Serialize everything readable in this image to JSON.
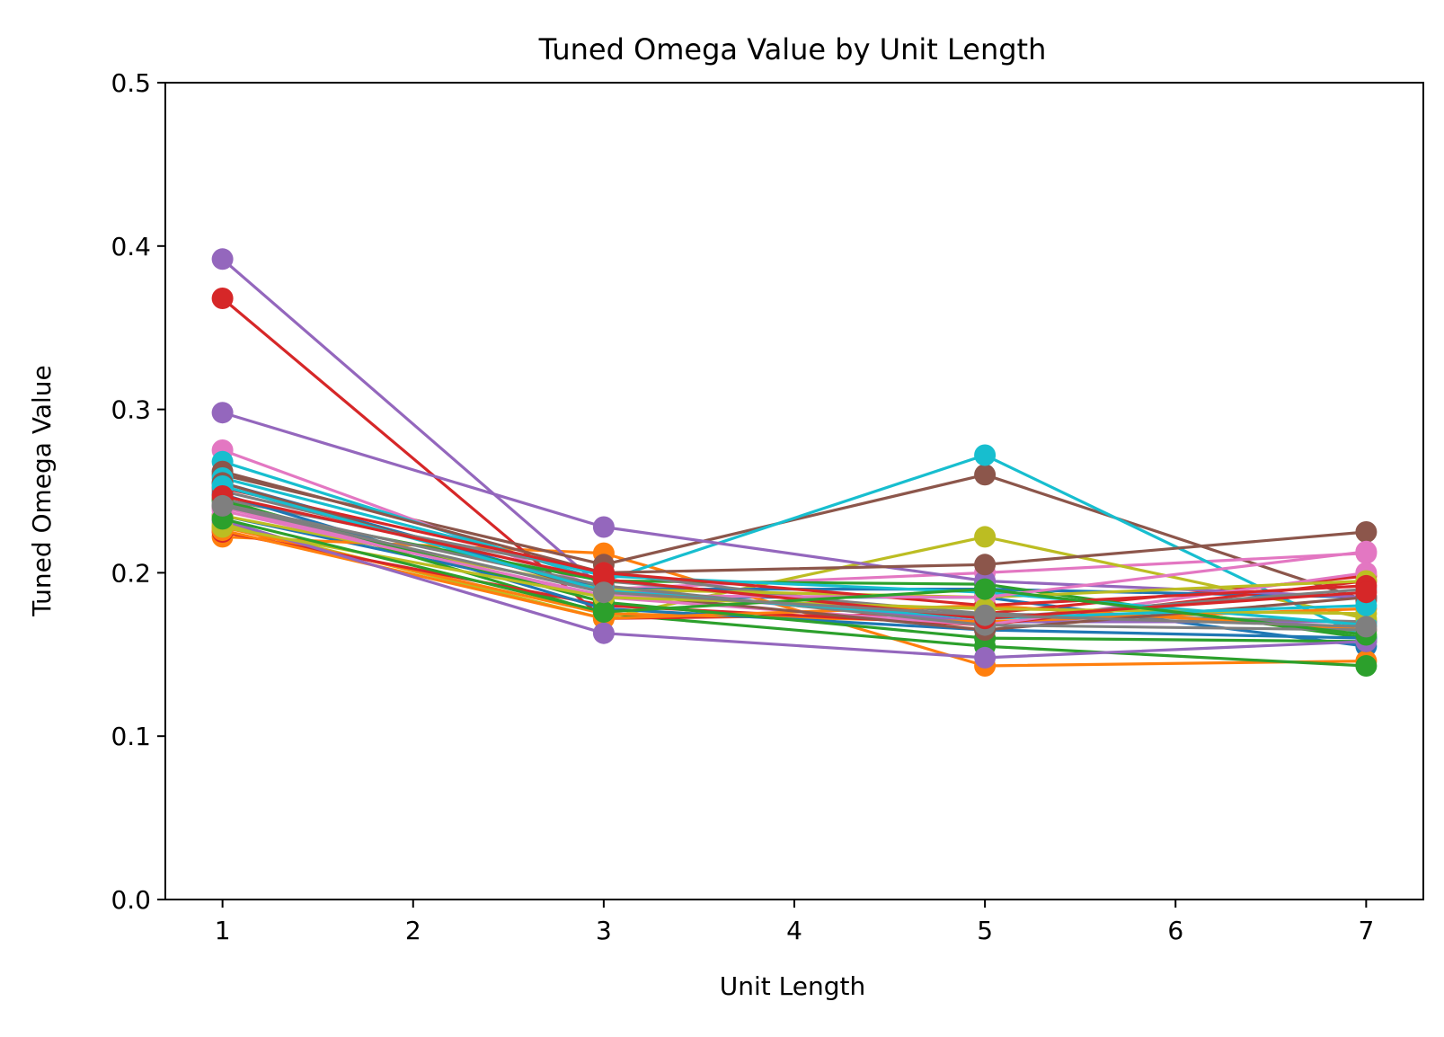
{
  "chart_data": {
    "type": "line",
    "title": "Tuned Omega Value by Unit Length",
    "xlabel": "Unit Length",
    "ylabel": "Tuned Omega Value",
    "xlim": [
      0.7,
      7.3
    ],
    "ylim": [
      0.0,
      0.5
    ],
    "x_ticks": [
      "1",
      "2",
      "3",
      "4",
      "5",
      "6",
      "7"
    ],
    "y_ticks": [
      "0.0",
      "0.1",
      "0.2",
      "0.3",
      "0.4",
      "0.5"
    ],
    "grid": false,
    "legend": "none",
    "x": [
      1,
      3,
      5,
      7
    ],
    "series": [
      {
        "color": "#1f77b4",
        "values": [
          0.235,
          0.185,
          0.185,
          0.155
        ]
      },
      {
        "color": "#ff7f0e",
        "values": [
          0.222,
          0.212,
          0.143,
          0.146
        ]
      },
      {
        "color": "#2ca02c",
        "values": [
          0.245,
          0.175,
          0.155,
          0.143
        ]
      },
      {
        "color": "#d62728",
        "values": [
          0.368,
          0.172,
          0.175,
          0.198
        ]
      },
      {
        "color": "#9467bd",
        "values": [
          0.392,
          0.19,
          0.17,
          0.17
        ]
      },
      {
        "color": "#8c564b",
        "values": [
          0.26,
          0.205,
          0.26,
          0.183
        ]
      },
      {
        "color": "#e377c2",
        "values": [
          0.275,
          0.19,
          0.2,
          0.212
        ]
      },
      {
        "color": "#7f7f7f",
        "values": [
          0.25,
          0.195,
          0.175,
          0.17
        ]
      },
      {
        "color": "#bcbd22",
        "values": [
          0.23,
          0.172,
          0.222,
          0.172
        ]
      },
      {
        "color": "#17becf",
        "values": [
          0.268,
          0.195,
          0.272,
          0.16
        ]
      },
      {
        "color": "#1f77b4",
        "values": [
          0.255,
          0.19,
          0.19,
          0.185
        ]
      },
      {
        "color": "#ff7f0e",
        "values": [
          0.228,
          0.175,
          0.17,
          0.178
        ]
      },
      {
        "color": "#2ca02c",
        "values": [
          0.24,
          0.195,
          0.193,
          0.16
        ]
      },
      {
        "color": "#d62728",
        "values": [
          0.225,
          0.18,
          0.168,
          0.195
        ]
      },
      {
        "color": "#9467bd",
        "values": [
          0.298,
          0.228,
          0.195,
          0.185
        ]
      },
      {
        "color": "#8c564b",
        "values": [
          0.262,
          0.2,
          0.205,
          0.225
        ]
      },
      {
        "color": "#e377c2",
        "values": [
          0.24,
          0.185,
          0.168,
          0.2
        ]
      },
      {
        "color": "#7f7f7f",
        "values": [
          0.245,
          0.2,
          0.172,
          0.19
        ]
      },
      {
        "color": "#bcbd22",
        "values": [
          0.235,
          0.19,
          0.185,
          0.195
        ]
      },
      {
        "color": "#17becf",
        "values": [
          0.258,
          0.198,
          0.188,
          0.168
        ]
      },
      {
        "color": "#1f77b4",
        "values": [
          0.248,
          0.178,
          0.165,
          0.16
        ]
      },
      {
        "color": "#ff7f0e",
        "values": [
          0.226,
          0.172,
          0.18,
          0.165
        ]
      },
      {
        "color": "#2ca02c",
        "values": [
          0.244,
          0.182,
          0.16,
          0.158
        ]
      },
      {
        "color": "#d62728",
        "values": [
          0.252,
          0.2,
          0.18,
          0.192
        ]
      },
      {
        "color": "#9467bd",
        "values": [
          0.232,
          0.163,
          0.148,
          0.158
        ]
      },
      {
        "color": "#8c564b",
        "values": [
          0.255,
          0.188,
          0.165,
          0.185
        ]
      },
      {
        "color": "#e377c2",
        "values": [
          0.238,
          0.186,
          0.185,
          0.213
        ]
      },
      {
        "color": "#7f7f7f",
        "values": [
          0.242,
          0.192,
          0.168,
          0.165
        ]
      },
      {
        "color": "#bcbd22",
        "values": [
          0.228,
          0.185,
          0.178,
          0.175
        ]
      },
      {
        "color": "#17becf",
        "values": [
          0.253,
          0.189,
          0.172,
          0.18
        ]
      },
      {
        "color": "#d62728",
        "values": [
          0.247,
          0.196,
          0.172,
          0.188
        ]
      },
      {
        "color": "#2ca02c",
        "values": [
          0.233,
          0.176,
          0.19,
          0.162
        ]
      },
      {
        "color": "#7f7f7f",
        "values": [
          0.241,
          0.188,
          0.174,
          0.167
        ]
      }
    ]
  }
}
